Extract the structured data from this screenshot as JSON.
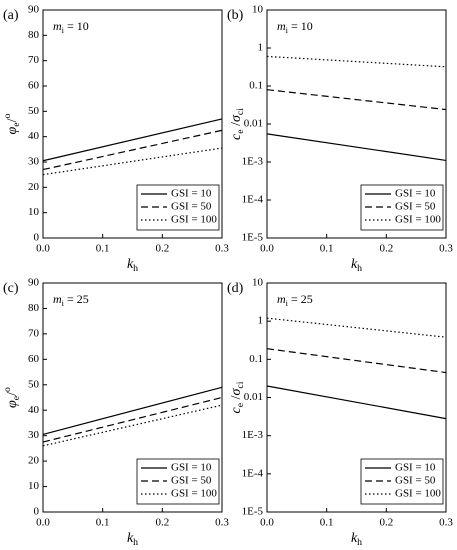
{
  "chart_data": [
    {
      "type": "line",
      "panel_label": "(a)",
      "annotation": [
        {
          "text": "m",
          "style": "italic"
        },
        {
          "text": "i",
          "style": "sub"
        },
        {
          "text": " = 10"
        }
      ],
      "xlabel": [
        {
          "text": "k",
          "style": "italic"
        },
        {
          "text": "h",
          "style": "sub"
        }
      ],
      "ylabel": [
        {
          "text": "φ",
          "style": "italic"
        },
        {
          "text": "e",
          "style": "sub"
        },
        {
          "text": "/"
        },
        {
          "text": "o",
          "style": "sup"
        }
      ],
      "x": [
        0,
        0.3
      ],
      "xlim": [
        0,
        0.3
      ],
      "xticks": [
        {
          "value": 0,
          "label": "0.0"
        },
        0.1,
        0.2,
        0.3
      ],
      "ylim": [
        0,
        90
      ],
      "yticks": [
        0,
        10,
        20,
        30,
        40,
        50,
        60,
        70,
        80,
        90
      ],
      "log_y": false,
      "legend": "lower right",
      "series": [
        {
          "name": "GSI = 10",
          "color": "#000000",
          "dash": "solid",
          "values": [
            30.5,
            47
          ]
        },
        {
          "name": "GSI = 50",
          "color": "#000000",
          "dash": "dashed",
          "values": [
            27,
            42.5
          ]
        },
        {
          "name": "GSI = 100",
          "color": "#000000",
          "dash": "dotted",
          "values": [
            25,
            35.5
          ]
        }
      ]
    },
    {
      "type": "line",
      "panel_label": "(b)",
      "annotation": [
        {
          "text": "m",
          "style": "italic"
        },
        {
          "text": "i",
          "style": "sub"
        },
        {
          "text": " = 10"
        }
      ],
      "xlabel": [
        {
          "text": "k",
          "style": "italic"
        },
        {
          "text": "h",
          "style": "sub"
        }
      ],
      "ylabel": [
        {
          "text": "c",
          "style": "italic"
        },
        {
          "text": "e",
          "style": "sub"
        },
        {
          "text": " /"
        },
        {
          "text": "σ",
          "style": "italic"
        },
        {
          "text": "ci",
          "style": "sub"
        }
      ],
      "x": [
        0,
        0.3
      ],
      "xlim": [
        0,
        0.3
      ],
      "xticks": [
        {
          "value": 0,
          "label": "0.0"
        },
        0.1,
        0.2,
        0.3
      ],
      "ylim": [
        1e-05,
        10
      ],
      "yticks": [
        {
          "value": 1e-05,
          "label": "1E-5"
        },
        {
          "value": 0.0001,
          "label": "1E-4"
        },
        {
          "value": 0.001,
          "label": "1E-3"
        },
        0.01,
        0.1,
        1,
        10
      ],
      "log_y": true,
      "legend": "lower right",
      "series": [
        {
          "name": "GSI = 10",
          "color": "#000000",
          "dash": "solid",
          "values": [
            0.0055,
            0.0011
          ]
        },
        {
          "name": "GSI = 50",
          "color": "#000000",
          "dash": "dashed",
          "values": [
            0.08,
            0.024
          ]
        },
        {
          "name": "GSI = 100",
          "color": "#000000",
          "dash": "dotted",
          "values": [
            0.6,
            0.32
          ]
        }
      ]
    },
    {
      "type": "line",
      "panel_label": "(c)",
      "annotation": [
        {
          "text": "m",
          "style": "italic"
        },
        {
          "text": "i",
          "style": "sub"
        },
        {
          "text": " = 25"
        }
      ],
      "xlabel": [
        {
          "text": "k",
          "style": "italic"
        },
        {
          "text": "h",
          "style": "sub"
        }
      ],
      "ylabel": [
        {
          "text": "φ",
          "style": "italic"
        },
        {
          "text": "e",
          "style": "sub"
        },
        {
          "text": "/"
        },
        {
          "text": "o",
          "style": "sup"
        }
      ],
      "x": [
        0,
        0.3
      ],
      "xlim": [
        0,
        0.3
      ],
      "xticks": [
        {
          "value": 0,
          "label": "0.0"
        },
        0.1,
        0.2,
        0.3
      ],
      "ylim": [
        0,
        90
      ],
      "yticks": [
        0,
        10,
        20,
        30,
        40,
        50,
        60,
        70,
        80,
        90
      ],
      "log_y": false,
      "legend": "lower right",
      "series": [
        {
          "name": "GSI = 10",
          "color": "#000000",
          "dash": "solid",
          "values": [
            30.5,
            49
          ]
        },
        {
          "name": "GSI = 50",
          "color": "#000000",
          "dash": "dashed",
          "values": [
            27.5,
            45
          ]
        },
        {
          "name": "GSI = 100",
          "color": "#000000",
          "dash": "dotted",
          "values": [
            26,
            42
          ]
        }
      ]
    },
    {
      "type": "line",
      "panel_label": "(d)",
      "annotation": [
        {
          "text": "m",
          "style": "italic"
        },
        {
          "text": "i",
          "style": "sub"
        },
        {
          "text": " = 25"
        }
      ],
      "xlabel": [
        {
          "text": "k",
          "style": "italic"
        },
        {
          "text": "h",
          "style": "sub"
        }
      ],
      "ylabel": [
        {
          "text": "c",
          "style": "italic"
        },
        {
          "text": "e",
          "style": "sub"
        },
        {
          "text": " /"
        },
        {
          "text": "σ",
          "style": "italic"
        },
        {
          "text": "ci",
          "style": "sub"
        }
      ],
      "x": [
        0,
        0.3
      ],
      "xlim": [
        0,
        0.3
      ],
      "xticks": [
        {
          "value": 0,
          "label": "0.0"
        },
        0.1,
        0.2,
        0.3
      ],
      "ylim": [
        1e-05,
        10
      ],
      "yticks": [
        {
          "value": 1e-05,
          "label": "1E-5"
        },
        {
          "value": 0.0001,
          "label": "1E-4"
        },
        {
          "value": 0.001,
          "label": "1E-3"
        },
        0.01,
        0.1,
        1,
        10
      ],
      "log_y": true,
      "legend": "lower right",
      "series": [
        {
          "name": "GSI = 10",
          "color": "#000000",
          "dash": "solid",
          "values": [
            0.02,
            0.0028
          ]
        },
        {
          "name": "GSI = 50",
          "color": "#000000",
          "dash": "dashed",
          "values": [
            0.19,
            0.045
          ]
        },
        {
          "name": "GSI = 100",
          "color": "#000000",
          "dash": "dotted",
          "values": [
            1.2,
            0.38
          ]
        }
      ]
    }
  ]
}
